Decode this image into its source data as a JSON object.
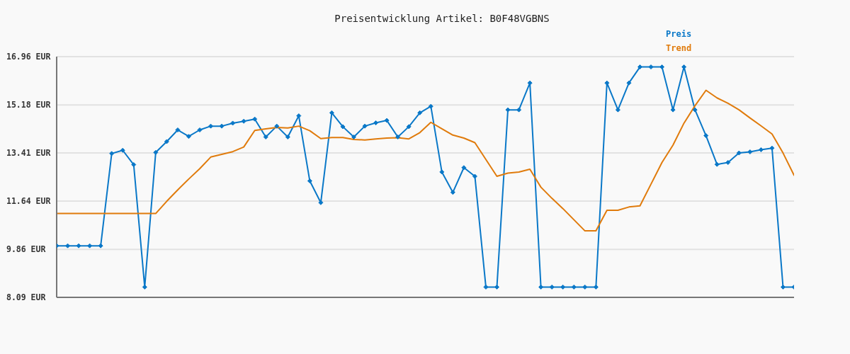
{
  "chart_data": {
    "type": "line",
    "title": "Preisentwicklung Artikel: B0F48VGBNS",
    "categories": [
      null,
      null,
      null,
      null,
      null,
      null,
      null,
      null,
      null,
      null,
      null,
      null,
      null,
      null,
      null,
      null,
      null,
      null,
      null,
      null,
      null,
      null,
      null,
      null,
      null,
      null,
      null,
      null,
      null,
      null,
      null,
      null,
      null,
      null,
      null,
      null,
      null,
      null,
      null,
      null,
      null,
      null,
      null,
      null,
      null,
      null,
      null,
      null,
      null,
      null,
      null,
      null,
      null,
      null,
      null,
      null,
      null,
      null,
      null,
      null,
      null,
      null,
      null,
      null,
      null,
      null,
      null,
      null
    ],
    "series": [
      {
        "name": "Preis",
        "color": "#0a78c8",
        "marker": "diamond",
        "values": [
          9.99,
          9.99,
          9.99,
          9.99,
          9.99,
          13.39,
          13.51,
          12.98,
          8.47,
          13.43,
          13.83,
          14.26,
          14.02,
          14.26,
          14.4,
          14.4,
          14.51,
          14.58,
          14.66,
          14.0,
          14.4,
          14.0,
          14.78,
          12.38,
          11.58,
          14.89,
          14.38,
          14.0,
          14.4,
          14.52,
          14.61,
          14.0,
          14.38,
          14.89,
          15.13,
          12.71,
          11.96,
          12.87,
          12.55,
          8.47,
          8.47,
          15.0,
          15.0,
          15.99,
          8.47,
          8.47,
          8.47,
          8.47,
          8.47,
          8.47,
          15.99,
          15.0,
          15.99,
          16.58,
          16.58,
          16.58,
          15.0,
          16.58,
          15.0,
          14.05,
          12.99,
          13.06,
          13.41,
          13.45,
          13.53,
          13.59,
          8.47,
          8.47
        ]
      },
      {
        "name": "Trend",
        "color": "#e07b0c",
        "marker": "none",
        "values": [
          11.18,
          11.18,
          11.18,
          11.18,
          11.18,
          11.18,
          11.18,
          11.18,
          11.18,
          11.18,
          11.63,
          12.05,
          12.45,
          12.83,
          13.26,
          13.36,
          13.46,
          13.63,
          14.24,
          14.3,
          14.35,
          14.33,
          14.4,
          14.23,
          13.94,
          13.98,
          13.98,
          13.91,
          13.89,
          13.93,
          13.96,
          13.97,
          13.93,
          14.16,
          14.54,
          14.3,
          14.07,
          13.96,
          13.79,
          13.17,
          12.55,
          12.67,
          12.71,
          12.81,
          12.15,
          11.74,
          11.36,
          10.95,
          10.54,
          10.54,
          11.3,
          11.3,
          11.42,
          11.46,
          12.26,
          13.06,
          13.7,
          14.51,
          15.15,
          15.72,
          15.44,
          15.24,
          15.0,
          14.7,
          14.41,
          14.11,
          13.41,
          12.59
        ]
      }
    ],
    "ylim": [
      8.09,
      16.96
    ],
    "yticks": [
      {
        "value": 8.09,
        "label": "8.09 EUR"
      },
      {
        "value": 9.86,
        "label": "9.86 EUR"
      },
      {
        "value": 11.64,
        "label": "11.64 EUR"
      },
      {
        "value": 13.41,
        "label": "13.41 EUR"
      },
      {
        "value": 15.18,
        "label": "15.18 EUR"
      },
      {
        "value": 16.96,
        "label": "16.96 EUR"
      }
    ],
    "grid": "y",
    "legend": "top right",
    "tick_labels": "y",
    "line_style": "solid"
  }
}
